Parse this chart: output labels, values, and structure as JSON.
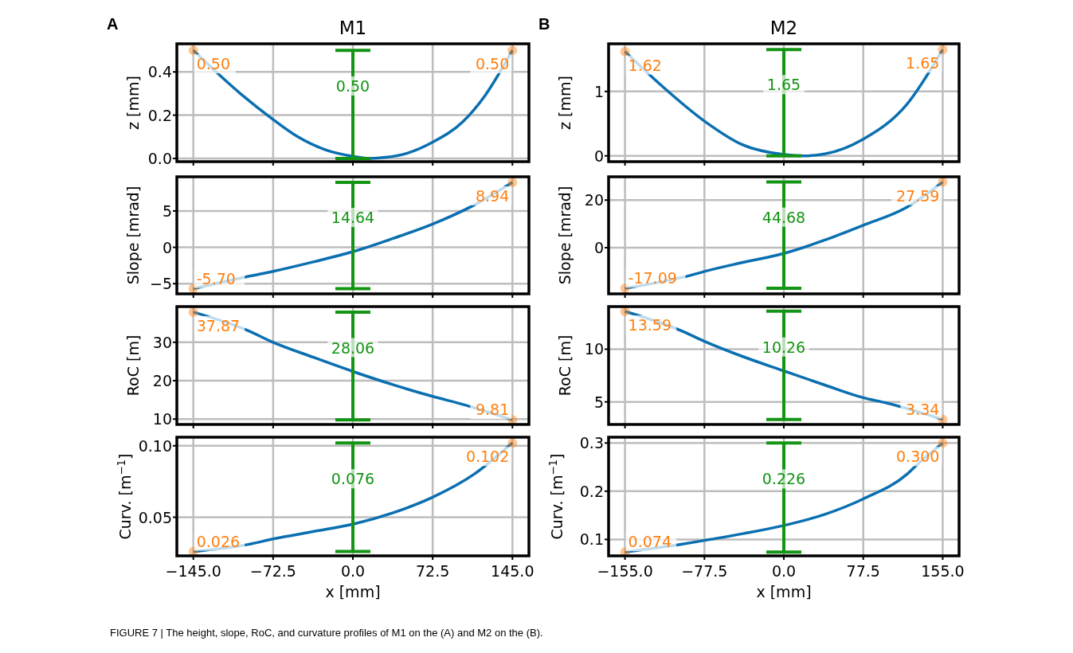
{
  "chart_data": [
    {
      "type": "line",
      "title": "M1",
      "ylabel": "z [mm]",
      "xlim": [
        -160,
        160
      ],
      "xticks": [
        {
          "value": -145,
          "label": null
        },
        {
          "value": -72.5,
          "label": null
        },
        {
          "value": 0,
          "label": null
        },
        {
          "value": 72.5,
          "label": null
        },
        {
          "value": 145,
          "label": null
        }
      ],
      "ylim": [
        -0.015,
        0.53
      ],
      "yticks": [
        {
          "value": 0,
          "label": "0.0"
        },
        {
          "value": 0.2,
          "label": "0.2"
        },
        {
          "value": 0.4,
          "label": "0.4"
        }
      ],
      "grid": true,
      "tick_labels": "y",
      "annotations": [
        "A"
      ],
      "series": [
        {
          "color": "#0a6fb0",
          "x": [
            -145,
            -120,
            -100,
            -72.5,
            -50,
            -25,
            0,
            15,
            30,
            50,
            72.5,
            100,
            120,
            145
          ],
          "values": [
            0.5,
            0.38,
            0.29,
            0.18,
            0.1,
            0.04,
            0.01,
            0.0,
            0.005,
            0.025,
            0.075,
            0.17,
            0.29,
            0.5
          ]
        },
        {
          "type": "scatter",
          "marker": "circle",
          "color": "#ff7f0e",
          "x": [
            -145,
            145
          ],
          "values": [
            0.5,
            0.5
          ],
          "value_labels": [
            "0.50",
            "0.50"
          ]
        },
        {
          "type": "bar",
          "color": "#149414",
          "x": [
            0
          ],
          "base": [
            0
          ],
          "values": [
            0.5
          ],
          "value_labels": [
            "0.50"
          ]
        }
      ]
    },
    {
      "type": "line",
      "ylabel": "Slope [mrad]",
      "xlim": [
        -160,
        160
      ],
      "xticks": [
        {
          "value": -145,
          "label": null
        },
        {
          "value": -72.5,
          "label": null
        },
        {
          "value": 0,
          "label": null
        },
        {
          "value": 72.5,
          "label": null
        },
        {
          "value": 145,
          "label": null
        }
      ],
      "ylim": [
        -6.4,
        9.7
      ],
      "yticks": [
        {
          "value": -5,
          "label": "−5"
        },
        {
          "value": 0,
          "label": "0"
        },
        {
          "value": 5,
          "label": "5"
        }
      ],
      "grid": true,
      "tick_labels": "y",
      "series": [
        {
          "color": "#0a6fb0",
          "x": [
            -145,
            -95,
            -72.5,
            -36,
            0,
            36,
            72.5,
            110,
            145
          ],
          "values": [
            -5.7,
            -4.0,
            -3.3,
            -2.0,
            -0.6,
            1.2,
            3.2,
            5.8,
            8.94
          ]
        },
        {
          "type": "scatter",
          "marker": "circle",
          "color": "#ff7f0e",
          "x": [
            -145,
            145
          ],
          "values": [
            -5.7,
            8.94
          ],
          "value_labels": [
            "-5.70",
            "8.94"
          ]
        },
        {
          "type": "bar",
          "color": "#149414",
          "x": [
            0
          ],
          "base": [
            -5.7
          ],
          "values": [
            14.64
          ],
          "value_labels": [
            "14.64"
          ]
        }
      ]
    },
    {
      "type": "line",
      "ylabel": "RoC [m]",
      "xlim": [
        -160,
        160
      ],
      "xticks": [
        {
          "value": -145,
          "label": null
        },
        {
          "value": -72.5,
          "label": null
        },
        {
          "value": 0,
          "label": null
        },
        {
          "value": 72.5,
          "label": null
        },
        {
          "value": 145,
          "label": null
        }
      ],
      "ylim": [
        8.6,
        39.3
      ],
      "yticks": [
        10,
        20,
        30
      ],
      "grid": true,
      "tick_labels": "y",
      "series": [
        {
          "color": "#0a6fb0",
          "x": [
            -145,
            -95,
            -72.5,
            -36,
            0,
            36,
            72.5,
            100,
            145
          ],
          "values": [
            37.87,
            33.0,
            30.0,
            26.1,
            22.4,
            19.0,
            15.9,
            13.8,
            9.81
          ]
        },
        {
          "type": "scatter",
          "marker": "circle",
          "color": "#ff7f0e",
          "x": [
            -145,
            145
          ],
          "values": [
            37.87,
            9.81
          ],
          "value_labels": [
            "37.87",
            "9.81"
          ]
        },
        {
          "type": "bar",
          "color": "#149414",
          "x": [
            0
          ],
          "base": [
            9.81
          ],
          "values": [
            28.06
          ],
          "value_labels": [
            "28.06"
          ]
        }
      ]
    },
    {
      "type": "line",
      "ylabel": "Curv. [m$^{−1}$]",
      "xlabel": "x [mm]",
      "xlim": [
        -160,
        160
      ],
      "xticks": [
        {
          "value": -145,
          "label": "−145.0"
        },
        {
          "value": -72.5,
          "label": "−72.5"
        },
        {
          "value": 0,
          "label": "0.0"
        },
        {
          "value": 72.5,
          "label": "72.5"
        },
        {
          "value": 145,
          "label": "145.0"
        }
      ],
      "ylim": [
        0.023,
        0.106
      ],
      "yticks": [
        0.05,
        {
          "value": 0.1,
          "label": "0.10"
        }
      ],
      "grid": true,
      "series": [
        {
          "color": "#0a6fb0",
          "x": [
            -145,
            -95,
            -72.5,
            -36,
            0,
            36,
            72.5,
            110,
            145
          ],
          "values": [
            0.026,
            0.031,
            0.0348,
            0.04,
            0.0451,
            0.053,
            0.064,
            0.08,
            0.102
          ]
        },
        {
          "type": "scatter",
          "marker": "circle",
          "color": "#ff7f0e",
          "x": [
            -145,
            145
          ],
          "values": [
            0.026,
            0.102
          ],
          "value_labels": [
            "0.026",
            "0.102"
          ]
        },
        {
          "type": "bar",
          "color": "#149414",
          "x": [
            0
          ],
          "base": [
            0.026
          ],
          "values": [
            0.076
          ],
          "value_labels": [
            "0.076"
          ]
        }
      ]
    },
    {
      "type": "line",
      "title": "M2",
      "ylabel": "z [mm]",
      "xlim": [
        -171,
        171
      ],
      "xticks": [
        {
          "value": -155,
          "label": null
        },
        {
          "value": -77.5,
          "label": null
        },
        {
          "value": 0,
          "label": null
        },
        {
          "value": 77.5,
          "label": null
        },
        {
          "value": 155,
          "label": null
        }
      ],
      "ylim": [
        -0.09,
        1.74
      ],
      "yticks": [
        0,
        1
      ],
      "grid": true,
      "tick_labels": "y",
      "annotations": [
        "B"
      ],
      "series": [
        {
          "color": "#0a6fb0",
          "x": [
            -155,
            -120,
            -77.5,
            -40,
            0,
            20,
            40,
            77.5,
            120,
            155
          ],
          "values": [
            1.62,
            1.1,
            0.54,
            0.17,
            0.02,
            0.0,
            0.03,
            0.26,
            0.8,
            1.65
          ]
        },
        {
          "type": "scatter",
          "marker": "circle",
          "color": "#ff7f0e",
          "x": [
            -155,
            155
          ],
          "values": [
            1.62,
            1.65
          ],
          "value_labels": [
            "1.62",
            "1.65"
          ]
        },
        {
          "type": "bar",
          "color": "#149414",
          "x": [
            0
          ],
          "base": [
            0
          ],
          "values": [
            1.65
          ],
          "value_labels": [
            "1.65"
          ]
        }
      ]
    },
    {
      "type": "line",
      "ylabel": "Slope [mrad]",
      "xlim": [
        -171,
        171
      ],
      "xticks": [
        {
          "value": -155,
          "label": null
        },
        {
          "value": -77.5,
          "label": null
        },
        {
          "value": 0,
          "label": null
        },
        {
          "value": 77.5,
          "label": null
        },
        {
          "value": 155,
          "label": null
        }
      ],
      "ylim": [
        -19.4,
        29.8
      ],
      "yticks": [
        0,
        20
      ],
      "grid": true,
      "tick_labels": "y",
      "series": [
        {
          "color": "#0a6fb0",
          "x": [
            -155,
            -90,
            -77.5,
            -40,
            0,
            40,
            77.5,
            120,
            155
          ],
          "values": [
            -17.09,
            -11.5,
            -10.0,
            -6.2,
            -2.4,
            3.2,
            9.4,
            17.0,
            27.59
          ]
        },
        {
          "type": "scatter",
          "marker": "circle",
          "color": "#ff7f0e",
          "x": [
            -155,
            155
          ],
          "values": [
            -17.09,
            27.59
          ],
          "value_labels": [
            "-17.09",
            "27.59"
          ]
        },
        {
          "type": "bar",
          "color": "#149414",
          "x": [
            0
          ],
          "base": [
            -17.09
          ],
          "values": [
            44.68
          ],
          "value_labels": [
            "44.68"
          ]
        }
      ]
    },
    {
      "type": "line",
      "ylabel": "RoC [m]",
      "xlim": [
        -171,
        171
      ],
      "xticks": [
        {
          "value": -155,
          "label": null
        },
        {
          "value": -77.5,
          "label": null
        },
        {
          "value": 0,
          "label": null
        },
        {
          "value": 77.5,
          "label": null
        },
        {
          "value": 155,
          "label": null
        }
      ],
      "ylim": [
        2.86,
        14.04
      ],
      "yticks": [
        5,
        10
      ],
      "grid": true,
      "tick_labels": "y",
      "series": [
        {
          "color": "#0a6fb0",
          "x": [
            -155,
            -100,
            -77.5,
            -40,
            0,
            40,
            77.5,
            100,
            155
          ],
          "values": [
            13.59,
            11.75,
            10.75,
            9.3,
            7.94,
            6.6,
            5.4,
            4.9,
            3.34
          ]
        },
        {
          "type": "scatter",
          "marker": "circle",
          "color": "#ff7f0e",
          "x": [
            -155,
            155
          ],
          "values": [
            13.59,
            3.34
          ],
          "value_labels": [
            "13.59",
            "3.34"
          ]
        },
        {
          "type": "bar",
          "color": "#149414",
          "x": [
            0
          ],
          "base": [
            3.34
          ],
          "values": [
            10.26
          ],
          "value_labels": [
            "10.26"
          ]
        }
      ]
    },
    {
      "type": "line",
      "ylabel": "Curv. [m$^{−1}$]",
      "xlabel": "x [mm]",
      "xlim": [
        -171,
        171
      ],
      "xticks": [
        {
          "value": -155,
          "label": "−155.0"
        },
        {
          "value": -77.5,
          "label": "−77.5"
        },
        {
          "value": 0,
          "label": "0.0"
        },
        {
          "value": 77.5,
          "label": "77.5"
        },
        {
          "value": 155,
          "label": "155.0"
        }
      ],
      "ylim": [
        0.066,
        0.312
      ],
      "yticks": [
        0.1,
        0.2,
        0.3
      ],
      "grid": true,
      "annotations": [
        null,
        "FIGURE 7 | The height, slope, RoC, and curvature profiles of M1 on the (A) and M2 on the (B)."
      ],
      "series": [
        {
          "color": "#0a6fb0",
          "x": [
            -155,
            -100,
            -77.5,
            -40,
            0,
            40,
            77.5,
            120,
            130,
            155
          ],
          "values": [
            0.074,
            0.09,
            0.098,
            0.112,
            0.129,
            0.152,
            0.184,
            0.235,
            0.255,
            0.3
          ]
        },
        {
          "type": "scatter",
          "marker": "circle",
          "color": "#ff7f0e",
          "x": [
            -155,
            155
          ],
          "values": [
            0.074,
            0.3
          ],
          "value_labels": [
            "0.074",
            "0.300"
          ]
        },
        {
          "type": "bar",
          "color": "#149414",
          "x": [
            0
          ],
          "base": [
            0.074
          ],
          "values": [
            0.226
          ],
          "value_labels": [
            "0.226"
          ]
        }
      ]
    }
  ]
}
